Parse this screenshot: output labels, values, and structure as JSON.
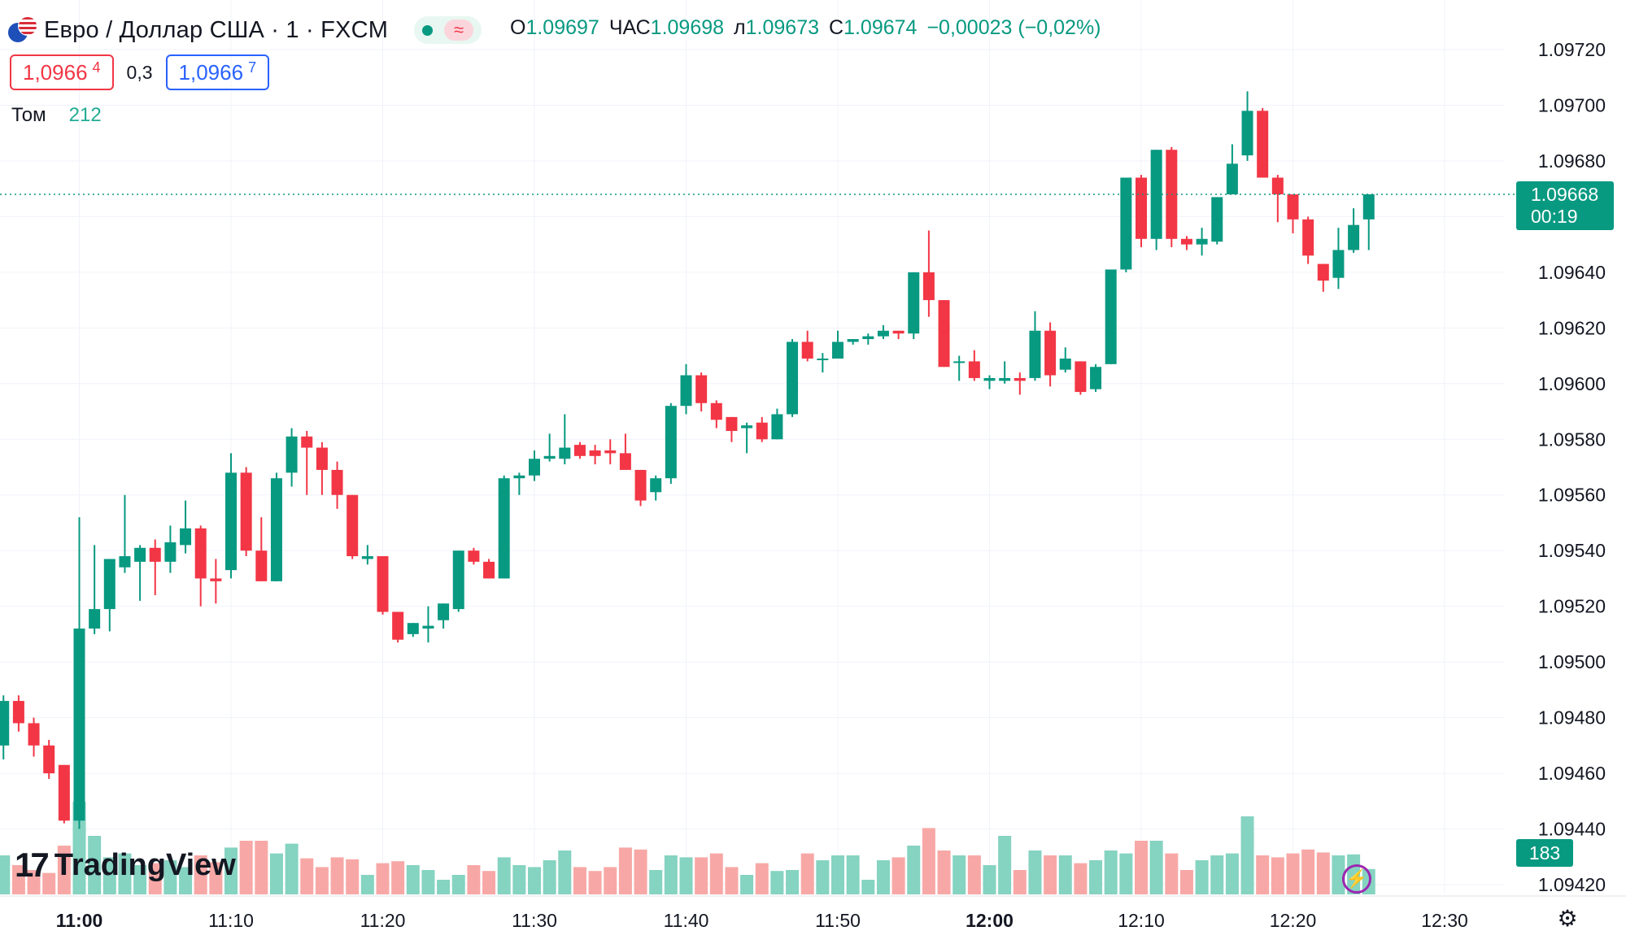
{
  "header": {
    "symbol_title": "Евро / Доллар США · 1 · FXCM",
    "ohlc": [
      {
        "key": "О",
        "value": "1.09697"
      },
      {
        "key": "ЧАС",
        "value": "1.09698"
      },
      {
        "key": "л",
        "value": "1.09673"
      },
      {
        "key": "С",
        "value": "1.09674"
      }
    ],
    "change": "−0,00023 (−0,02%)",
    "wave_glyph": "≈"
  },
  "trade": {
    "sell_main": "1,0966",
    "sell_sup": "4",
    "spread": "0,3",
    "buy_main": "1,0966",
    "buy_sup": "7"
  },
  "volume_legend": {
    "label": "Том",
    "value": "212"
  },
  "last_price": {
    "price": "1.09668",
    "countdown": "00:19"
  },
  "last_volume": "183",
  "logo": {
    "mark": "17",
    "text": "TradingView"
  },
  "icons": {
    "bolt": "lightning-icon",
    "settings": "gear-icon",
    "flag": "eur-usd-flag-icon"
  },
  "colors": {
    "up": "#089981",
    "down": "#f23645",
    "vol_up": "#85d3c1",
    "vol_down": "#f7a8a6"
  },
  "chart_data": {
    "type": "candlestick",
    "interval_minutes": 1,
    "ylim": [
      1.09415,
      1.09728
    ],
    "y_ticks": [
      "1.09720",
      "1.09700",
      "1.09680",
      "1.09660",
      "1.09640",
      "1.09620",
      "1.09600",
      "1.09580",
      "1.09560",
      "1.09540",
      "1.09520",
      "1.09500",
      "1.09480",
      "1.09460",
      "1.09440",
      "1.09420"
    ],
    "x_ticks": [
      {
        "label": "11:00",
        "bold": true,
        "t": "11:00"
      },
      {
        "label": "11:10",
        "bold": false,
        "t": "11:10"
      },
      {
        "label": "11:20",
        "bold": false,
        "t": "11:20"
      },
      {
        "label": "11:30",
        "bold": false,
        "t": "11:30"
      },
      {
        "label": "11:40",
        "bold": false,
        "t": "11:40"
      },
      {
        "label": "11:50",
        "bold": false,
        "t": "11:50"
      },
      {
        "label": "12:00",
        "bold": true,
        "t": "12:00"
      },
      {
        "label": "12:10",
        "bold": false,
        "t": "12:10"
      },
      {
        "label": "12:20",
        "bold": false,
        "t": "12:20"
      },
      {
        "label": "12:30",
        "bold": false,
        "t": "12:30"
      }
    ],
    "xlim": [
      "10:55",
      "12:36"
    ],
    "current_price": 1.09668,
    "candles": [
      {
        "t": "10:55",
        "o": 1.0947,
        "h": 1.09488,
        "l": 1.09465,
        "c": 1.09486,
        "v": 40
      },
      {
        "t": "10:56",
        "o": 1.09486,
        "h": 1.09488,
        "l": 1.09475,
        "c": 1.09478,
        "v": 30
      },
      {
        "t": "10:57",
        "o": 1.09478,
        "h": 1.0948,
        "l": 1.09466,
        "c": 1.0947,
        "v": 25
      },
      {
        "t": "10:58",
        "o": 1.0947,
        "h": 1.09472,
        "l": 1.09458,
        "c": 1.0946,
        "v": 22
      },
      {
        "t": "10:59",
        "o": 1.09463,
        "h": 1.09463,
        "l": 1.09442,
        "c": 1.09443,
        "v": 50
      },
      {
        "t": "11:00",
        "o": 1.09443,
        "h": 1.09552,
        "l": 1.0944,
        "c": 1.09512,
        "v": 95
      },
      {
        "t": "11:01",
        "o": 1.09512,
        "h": 1.09542,
        "l": 1.0951,
        "c": 1.09519,
        "v": 60
      },
      {
        "t": "11:02",
        "o": 1.09519,
        "h": 1.09537,
        "l": 1.09511,
        "c": 1.09537,
        "v": 38
      },
      {
        "t": "11:03",
        "o": 1.09534,
        "h": 1.0956,
        "l": 1.09532,
        "c": 1.09538,
        "v": 42
      },
      {
        "t": "11:04",
        "o": 1.09536,
        "h": 1.09542,
        "l": 1.09522,
        "c": 1.09541,
        "v": 30
      },
      {
        "t": "11:05",
        "o": 1.09541,
        "h": 1.09544,
        "l": 1.09524,
        "c": 1.09536,
        "v": 32
      },
      {
        "t": "11:06",
        "o": 1.09536,
        "h": 1.09549,
        "l": 1.09532,
        "c": 1.09543,
        "v": 35
      },
      {
        "t": "11:07",
        "o": 1.09542,
        "h": 1.09558,
        "l": 1.09539,
        "c": 1.09548,
        "v": 28
      },
      {
        "t": "11:08",
        "o": 1.09548,
        "h": 1.09549,
        "l": 1.0952,
        "c": 1.0953,
        "v": 40
      },
      {
        "t": "11:09",
        "o": 1.0953,
        "h": 1.09537,
        "l": 1.09521,
        "c": 1.09529,
        "v": 33
      },
      {
        "t": "11:10",
        "o": 1.09533,
        "h": 1.09575,
        "l": 1.0953,
        "c": 1.09568,
        "v": 48
      },
      {
        "t": "11:11",
        "o": 1.09568,
        "h": 1.0957,
        "l": 1.09538,
        "c": 1.0954,
        "v": 55
      },
      {
        "t": "11:12",
        "o": 1.0954,
        "h": 1.09552,
        "l": 1.09529,
        "c": 1.09529,
        "v": 55
      },
      {
        "t": "11:13",
        "o": 1.09529,
        "h": 1.09568,
        "l": 1.09529,
        "c": 1.09566,
        "v": 42
      },
      {
        "t": "11:14",
        "o": 1.09568,
        "h": 1.09584,
        "l": 1.09563,
        "c": 1.09581,
        "v": 52
      },
      {
        "t": "11:15",
        "o": 1.09581,
        "h": 1.09583,
        "l": 1.0956,
        "c": 1.09577,
        "v": 37
      },
      {
        "t": "11:16",
        "o": 1.09577,
        "h": 1.09579,
        "l": 1.0956,
        "c": 1.09569,
        "v": 28
      },
      {
        "t": "11:17",
        "o": 1.09569,
        "h": 1.09572,
        "l": 1.09555,
        "c": 1.0956,
        "v": 38
      },
      {
        "t": "11:18",
        "o": 1.0956,
        "h": 1.0956,
        "l": 1.09537,
        "c": 1.09538,
        "v": 36
      },
      {
        "t": "11:19",
        "o": 1.09537,
        "h": 1.09542,
        "l": 1.09535,
        "c": 1.09538,
        "v": 20
      },
      {
        "t": "11:20",
        "o": 1.09538,
        "h": 1.09538,
        "l": 1.09517,
        "c": 1.09518,
        "v": 32
      },
      {
        "t": "11:21",
        "o": 1.09518,
        "h": 1.09518,
        "l": 1.09507,
        "c": 1.09508,
        "v": 34
      },
      {
        "t": "11:22",
        "o": 1.0951,
        "h": 1.09514,
        "l": 1.09509,
        "c": 1.09514,
        "v": 30
      },
      {
        "t": "11:23",
        "o": 1.09512,
        "h": 1.0952,
        "l": 1.09507,
        "c": 1.09513,
        "v": 25
      },
      {
        "t": "11:24",
        "o": 1.09515,
        "h": 1.09521,
        "l": 1.09512,
        "c": 1.09521,
        "v": 15
      },
      {
        "t": "11:25",
        "o": 1.09519,
        "h": 1.0954,
        "l": 1.09518,
        "c": 1.0954,
        "v": 20
      },
      {
        "t": "11:26",
        "o": 1.0954,
        "h": 1.09541,
        "l": 1.09535,
        "c": 1.09536,
        "v": 30
      },
      {
        "t": "11:27",
        "o": 1.09536,
        "h": 1.09537,
        "l": 1.0953,
        "c": 1.0953,
        "v": 24
      },
      {
        "t": "11:28",
        "o": 1.0953,
        "h": 1.09567,
        "l": 1.0953,
        "c": 1.09566,
        "v": 38
      },
      {
        "t": "11:29",
        "o": 1.09566,
        "h": 1.09568,
        "l": 1.0956,
        "c": 1.09567,
        "v": 30
      },
      {
        "t": "11:30",
        "o": 1.09567,
        "h": 1.09576,
        "l": 1.09565,
        "c": 1.09573,
        "v": 28
      },
      {
        "t": "11:31",
        "o": 1.09573,
        "h": 1.09582,
        "l": 1.09572,
        "c": 1.09574,
        "v": 35
      },
      {
        "t": "11:32",
        "o": 1.09573,
        "h": 1.09589,
        "l": 1.09571,
        "c": 1.09577,
        "v": 45
      },
      {
        "t": "11:33",
        "o": 1.09578,
        "h": 1.09579,
        "l": 1.09573,
        "c": 1.09574,
        "v": 28
      },
      {
        "t": "11:34",
        "o": 1.09576,
        "h": 1.09578,
        "l": 1.09571,
        "c": 1.09574,
        "v": 24
      },
      {
        "t": "11:35",
        "o": 1.09576,
        "h": 1.0958,
        "l": 1.09571,
        "c": 1.09575,
        "v": 28
      },
      {
        "t": "11:36",
        "o": 1.09575,
        "h": 1.09582,
        "l": 1.0957,
        "c": 1.09569,
        "v": 48
      },
      {
        "t": "11:37",
        "o": 1.09569,
        "h": 1.09569,
        "l": 1.09556,
        "c": 1.09558,
        "v": 46
      },
      {
        "t": "11:38",
        "o": 1.09561,
        "h": 1.09567,
        "l": 1.09558,
        "c": 1.09566,
        "v": 25
      },
      {
        "t": "11:39",
        "o": 1.09566,
        "h": 1.09593,
        "l": 1.09564,
        "c": 1.09592,
        "v": 40
      },
      {
        "t": "11:40",
        "o": 1.09592,
        "h": 1.09607,
        "l": 1.09589,
        "c": 1.09603,
        "v": 38
      },
      {
        "t": "11:41",
        "o": 1.09603,
        "h": 1.09604,
        "l": 1.0959,
        "c": 1.09593,
        "v": 38
      },
      {
        "t": "11:42",
        "o": 1.09593,
        "h": 1.09594,
        "l": 1.09584,
        "c": 1.09587,
        "v": 42
      },
      {
        "t": "11:43",
        "o": 1.09588,
        "h": 1.09588,
        "l": 1.09579,
        "c": 1.09583,
        "v": 28
      },
      {
        "t": "11:44",
        "o": 1.09584,
        "h": 1.09586,
        "l": 1.09575,
        "c": 1.09585,
        "v": 20
      },
      {
        "t": "11:45",
        "o": 1.09586,
        "h": 1.09588,
        "l": 1.09579,
        "c": 1.0958,
        "v": 32
      },
      {
        "t": "11:46",
        "o": 1.0958,
        "h": 1.09591,
        "l": 1.0958,
        "c": 1.09589,
        "v": 24
      },
      {
        "t": "11:47",
        "o": 1.09589,
        "h": 1.09616,
        "l": 1.09588,
        "c": 1.09615,
        "v": 25
      },
      {
        "t": "11:48",
        "o": 1.09615,
        "h": 1.09619,
        "l": 1.09608,
        "c": 1.09609,
        "v": 42
      },
      {
        "t": "11:49",
        "o": 1.09609,
        "h": 1.09611,
        "l": 1.09604,
        "c": 1.09609,
        "v": 35
      },
      {
        "t": "11:50",
        "o": 1.09609,
        "h": 1.09619,
        "l": 1.09609,
        "c": 1.09615,
        "v": 40
      },
      {
        "t": "11:51",
        "o": 1.09615,
        "h": 1.09616,
        "l": 1.09614,
        "c": 1.09616,
        "v": 40
      },
      {
        "t": "11:52",
        "o": 1.09616,
        "h": 1.09618,
        "l": 1.09614,
        "c": 1.09617,
        "v": 15
      },
      {
        "t": "11:53",
        "o": 1.09617,
        "h": 1.09621,
        "l": 1.09616,
        "c": 1.09619,
        "v": 35
      },
      {
        "t": "11:54",
        "o": 1.09619,
        "h": 1.09619,
        "l": 1.09616,
        "c": 1.09618,
        "v": 38
      },
      {
        "t": "11:55",
        "o": 1.09618,
        "h": 1.0964,
        "l": 1.09616,
        "c": 1.0964,
        "v": 50
      },
      {
        "t": "11:56",
        "o": 1.0964,
        "h": 1.09655,
        "l": 1.09624,
        "c": 1.0963,
        "v": 68
      },
      {
        "t": "11:57",
        "o": 1.0963,
        "h": 1.0963,
        "l": 1.09606,
        "c": 1.09606,
        "v": 45
      },
      {
        "t": "11:58",
        "o": 1.09608,
        "h": 1.0961,
        "l": 1.09601,
        "c": 1.09608,
        "v": 40
      },
      {
        "t": "11:59",
        "o": 1.09608,
        "h": 1.09612,
        "l": 1.09601,
        "c": 1.09602,
        "v": 40
      },
      {
        "t": "12:00",
        "o": 1.09601,
        "h": 1.09603,
        "l": 1.09598,
        "c": 1.09602,
        "v": 30
      },
      {
        "t": "12:01",
        "o": 1.09601,
        "h": 1.09608,
        "l": 1.096,
        "c": 1.09602,
        "v": 60
      },
      {
        "t": "12:02",
        "o": 1.09602,
        "h": 1.09604,
        "l": 1.09596,
        "c": 1.09601,
        "v": 25
      },
      {
        "t": "12:03",
        "o": 1.09602,
        "h": 1.09626,
        "l": 1.09601,
        "c": 1.09619,
        "v": 45
      },
      {
        "t": "12:04",
        "o": 1.09619,
        "h": 1.09622,
        "l": 1.09599,
        "c": 1.09603,
        "v": 40
      },
      {
        "t": "12:05",
        "o": 1.09605,
        "h": 1.09613,
        "l": 1.09604,
        "c": 1.09609,
        "v": 40
      },
      {
        "t": "12:06",
        "o": 1.09608,
        "h": 1.09608,
        "l": 1.09596,
        "c": 1.09597,
        "v": 32
      },
      {
        "t": "12:07",
        "o": 1.09598,
        "h": 1.09607,
        "l": 1.09597,
        "c": 1.09606,
        "v": 35
      },
      {
        "t": "12:08",
        "o": 1.09607,
        "h": 1.09641,
        "l": 1.09607,
        "c": 1.09641,
        "v": 45
      },
      {
        "t": "12:09",
        "o": 1.09641,
        "h": 1.09674,
        "l": 1.0964,
        "c": 1.09674,
        "v": 42
      },
      {
        "t": "12:10",
        "o": 1.09674,
        "h": 1.09675,
        "l": 1.09649,
        "c": 1.09652,
        "v": 55
      },
      {
        "t": "12:11",
        "o": 1.09652,
        "h": 1.09684,
        "l": 1.09648,
        "c": 1.09684,
        "v": 55
      },
      {
        "t": "12:12",
        "o": 1.09684,
        "h": 1.09685,
        "l": 1.09649,
        "c": 1.09652,
        "v": 42
      },
      {
        "t": "12:13",
        "o": 1.09652,
        "h": 1.09653,
        "l": 1.09648,
        "c": 1.0965,
        "v": 25
      },
      {
        "t": "12:14",
        "o": 1.0965,
        "h": 1.09656,
        "l": 1.09646,
        "c": 1.09652,
        "v": 35
      },
      {
        "t": "12:15",
        "o": 1.09651,
        "h": 1.09667,
        "l": 1.0965,
        "c": 1.09667,
        "v": 40
      },
      {
        "t": "12:16",
        "o": 1.09668,
        "h": 1.09686,
        "l": 1.09668,
        "c": 1.09679,
        "v": 42
      },
      {
        "t": "12:17",
        "o": 1.09682,
        "h": 1.09705,
        "l": 1.0968,
        "c": 1.09698,
        "v": 80
      },
      {
        "t": "12:18",
        "o": 1.09698,
        "h": 1.09699,
        "l": 1.09674,
        "c": 1.09674,
        "v": 40
      },
      {
        "t": "12:19",
        "o": 1.09674,
        "h": 1.09675,
        "l": 1.09658,
        "c": 1.09668,
        "v": 38
      },
      {
        "t": "12:20",
        "o": 1.09668,
        "h": 1.09668,
        "l": 1.09654,
        "c": 1.09659,
        "v": 42
      },
      {
        "t": "12:21",
        "o": 1.09659,
        "h": 1.0966,
        "l": 1.09643,
        "c": 1.09646,
        "v": 46
      },
      {
        "t": "12:22",
        "o": 1.09643,
        "h": 1.09643,
        "l": 1.09633,
        "c": 1.09637,
        "v": 43
      },
      {
        "t": "12:23",
        "o": 1.09638,
        "h": 1.09656,
        "l": 1.09634,
        "c": 1.09648,
        "v": 40
      },
      {
        "t": "12:24",
        "o": 1.09648,
        "h": 1.09663,
        "l": 1.09647,
        "c": 1.09657,
        "v": 41
      },
      {
        "t": "12:25",
        "o": 1.09659,
        "h": 1.09668,
        "l": 1.09648,
        "c": 1.09668,
        "v": 26
      }
    ]
  }
}
